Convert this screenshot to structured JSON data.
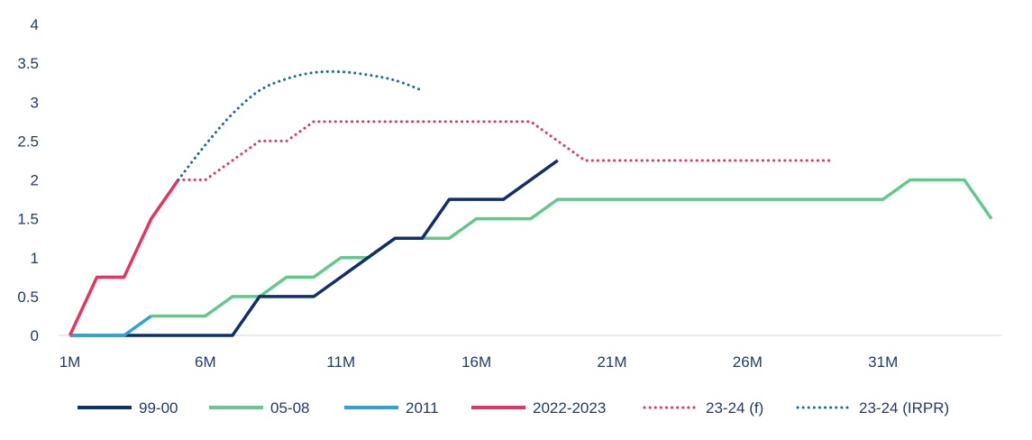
{
  "chart_data": {
    "type": "line",
    "title": "",
    "xlabel": "",
    "ylabel": "",
    "ylim": [
      0,
      4
    ],
    "xlim": [
      1,
      35
    ],
    "y_ticks": [
      {
        "value": 0,
        "label": "0"
      },
      {
        "value": 0.5,
        "label": "0.5"
      },
      {
        "value": 1,
        "label": "1"
      },
      {
        "value": 1.5,
        "label": "1.5"
      },
      {
        "value": 2,
        "label": "2"
      },
      {
        "value": 2.5,
        "label": "2.5"
      },
      {
        "value": 3,
        "label": "3"
      },
      {
        "value": 3.5,
        "label": "3.5"
      },
      {
        "value": 4,
        "label": "4"
      }
    ],
    "x_ticks": [
      {
        "value": 1,
        "label": "1M"
      },
      {
        "value": 6,
        "label": "6M"
      },
      {
        "value": 11,
        "label": "11M"
      },
      {
        "value": 16,
        "label": "16M"
      },
      {
        "value": 21,
        "label": "21M"
      },
      {
        "value": 26,
        "label": "26M"
      },
      {
        "value": 31,
        "label": "31M"
      }
    ],
    "grid": false,
    "legend_position": "bottom",
    "series": [
      {
        "name": "99-00",
        "color": "#0f2f6e",
        "style": "solid",
        "points": [
          [
            1,
            0
          ],
          [
            7,
            0
          ],
          [
            8,
            0.5
          ],
          [
            10,
            0.5
          ],
          [
            13,
            1.25
          ],
          [
            14,
            1.25
          ],
          [
            15,
            1.75
          ],
          [
            17,
            1.75
          ],
          [
            19,
            2.25
          ]
        ]
      },
      {
        "name": "05-08",
        "color": "#62c98a",
        "style": "solid",
        "points": [
          [
            4,
            0.25
          ],
          [
            6,
            0.25
          ],
          [
            7,
            0.5
          ],
          [
            8,
            0.5
          ],
          [
            9,
            0.75
          ],
          [
            10,
            0.75
          ],
          [
            11,
            1
          ],
          [
            12,
            1
          ],
          [
            13,
            1.25
          ],
          [
            15,
            1.25
          ],
          [
            16,
            1.5
          ],
          [
            18,
            1.5
          ],
          [
            19,
            1.75
          ],
          [
            31,
            1.75
          ],
          [
            32,
            2
          ],
          [
            34,
            2
          ],
          [
            35,
            1.5
          ]
        ]
      },
      {
        "name": "2011",
        "color": "#2aa5d6",
        "style": "solid",
        "points": [
          [
            1,
            0
          ],
          [
            3,
            0
          ],
          [
            4,
            0.25
          ]
        ]
      },
      {
        "name": "2022-2023",
        "color": "#e8325f",
        "style": "solid",
        "points": [
          [
            1,
            0
          ],
          [
            2,
            0.75
          ],
          [
            3,
            0.75
          ],
          [
            4,
            1.5
          ],
          [
            5,
            2
          ]
        ]
      },
      {
        "name": "23-24 (f)",
        "color": "#e8325f",
        "style": "dotted",
        "points": [
          [
            5,
            2
          ],
          [
            6,
            2
          ],
          [
            7,
            2.25
          ],
          [
            8,
            2.5
          ],
          [
            9,
            2.5
          ],
          [
            10,
            2.75
          ],
          [
            18,
            2.75
          ],
          [
            19,
            2.5
          ],
          [
            20,
            2.25
          ],
          [
            29,
            2.25
          ]
        ]
      },
      {
        "name": "23-24 (IRPR)",
        "color": "#1a6e96",
        "style": "dotted",
        "points": [
          [
            5,
            2
          ],
          [
            6,
            2.45
          ],
          [
            7,
            2.85
          ],
          [
            8,
            3.15
          ],
          [
            9,
            3.3
          ],
          [
            10,
            3.38
          ],
          [
            11,
            3.39
          ],
          [
            12,
            3.35
          ],
          [
            13,
            3.28
          ],
          [
            14,
            3.15
          ]
        ]
      }
    ]
  }
}
